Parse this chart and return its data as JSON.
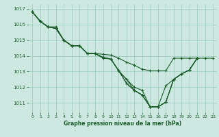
{
  "background_color": "#cce8e0",
  "grid_color": "#99ccbb",
  "line_color": "#1a5c2a",
  "marker_color": "#1a5c2a",
  "title": "Graphe pression niveau de la mer (hPa)",
  "xlim": [
    -0.5,
    23.5
  ],
  "ylim": [
    1010.4,
    1017.3
  ],
  "yticks": [
    1011,
    1012,
    1013,
    1014,
    1015,
    1016,
    1017
  ],
  "xticks": [
    0,
    1,
    2,
    3,
    4,
    5,
    6,
    7,
    8,
    9,
    10,
    11,
    12,
    13,
    14,
    15,
    16,
    17,
    18,
    19,
    20,
    21,
    22,
    23
  ],
  "series": [
    [
      1016.8,
      1016.2,
      1015.85,
      1015.85,
      1015.0,
      1014.65,
      1014.65,
      1014.15,
      1014.15,
      1013.85,
      1013.8,
      1013.05,
      1012.5,
      1012.0,
      1011.8,
      1010.75,
      1010.75,
      1012.1,
      1012.5,
      1012.85,
      1013.1,
      1013.85,
      null,
      null
    ],
    [
      1016.8,
      1016.2,
      1015.85,
      1015.75,
      1015.0,
      1014.65,
      1014.65,
      1014.15,
      1014.15,
      1013.9,
      1013.8,
      1013.05,
      1012.5,
      1011.8,
      1011.5,
      1010.75,
      1010.75,
      1011.05,
      1012.5,
      1012.85,
      1013.1,
      1013.85,
      null,
      null
    ],
    [
      1016.8,
      1016.2,
      1015.85,
      1015.75,
      1015.0,
      1014.65,
      1014.65,
      1014.15,
      1014.15,
      1013.9,
      1013.8,
      1013.05,
      1012.25,
      1011.8,
      1011.5,
      1010.75,
      1010.75,
      1011.05,
      1012.5,
      1012.85,
      1013.1,
      1013.85,
      null,
      null
    ],
    [
      1016.8,
      1016.2,
      1015.85,
      1015.75,
      1015.0,
      1014.65,
      1014.65,
      1014.15,
      1014.15,
      1013.9,
      1013.8,
      1013.05,
      1012.25,
      1011.8,
      1011.5,
      1010.75,
      1010.75,
      1011.05,
      1012.5,
      1012.85,
      1013.1,
      1013.85,
      null,
      null
    ],
    [
      1016.8,
      1016.2,
      1015.85,
      1015.75,
      1015.0,
      1014.65,
      1014.65,
      1014.15,
      1014.15,
      1014.1,
      1014.05,
      1013.85,
      1013.6,
      1013.4,
      1013.15,
      1013.05,
      1013.05,
      1013.05,
      1013.85,
      1013.85,
      1013.85,
      1013.85,
      1013.85,
      1013.85
    ]
  ]
}
